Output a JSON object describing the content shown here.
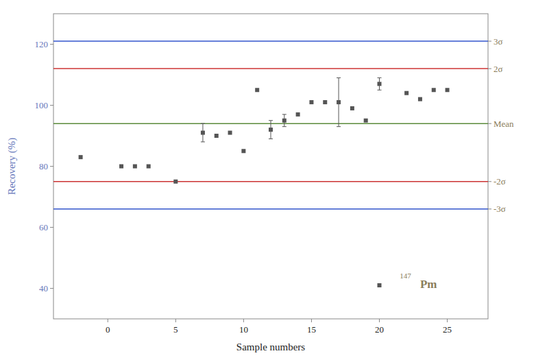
{
  "chart_data": {
    "type": "scatter",
    "xlabel": "Sample numbers",
    "ylabel": "Recovery (%)",
    "xlim": [
      -4,
      28
    ],
    "ylim": [
      30,
      130
    ],
    "xticks": [
      0,
      5,
      10,
      15,
      20,
      25
    ],
    "yticks": [
      40,
      60,
      80,
      100,
      120
    ],
    "y2lim": [
      30,
      130
    ],
    "y2ticks": [
      {
        "value": 121.0,
        "label": "3σ"
      },
      {
        "value": 112.0,
        "label": "2σ"
      },
      {
        "value": 94.0,
        "label": "Mean"
      },
      {
        "value": 75.0,
        "label": "-2σ"
      },
      {
        "value": 66.0,
        "label": "-3σ"
      }
    ],
    "lines": [
      {
        "y": 94.0,
        "color": "#5a8a3a"
      },
      {
        "y": 112.0,
        "color": "#cc3333"
      },
      {
        "y": 75.0,
        "color": "#cc3333"
      },
      {
        "y": 121.0,
        "color": "#3355cc"
      },
      {
        "y": 66.0,
        "color": "#3355cc"
      }
    ],
    "x": [
      -2,
      1,
      2,
      3,
      5,
      7,
      8,
      9,
      10,
      11,
      12,
      13,
      14,
      15,
      16,
      17,
      18,
      19,
      20,
      22,
      23,
      24,
      25
    ],
    "series": [
      {
        "color": "#555555",
        "marker": "square",
        "values": [
          83,
          80,
          80,
          80,
          75,
          91,
          90,
          91,
          85,
          105,
          92,
          95,
          97,
          101,
          101,
          101,
          99,
          95,
          107,
          104,
          102,
          105,
          105
        ],
        "errors": [
          0,
          0,
          0,
          0,
          0,
          3,
          0,
          0,
          0,
          0,
          3,
          2,
          0,
          0,
          0,
          8,
          0,
          0,
          2,
          0,
          0,
          0,
          0
        ]
      }
    ],
    "annotations": [
      {
        "x": 20,
        "y": 41,
        "marker": "square",
        "color": "#555555"
      },
      {
        "text": "147",
        "x": 21.5,
        "y": 42.5
      },
      {
        "text": "Pm",
        "x": 23.0,
        "y": 39.5
      }
    ]
  }
}
